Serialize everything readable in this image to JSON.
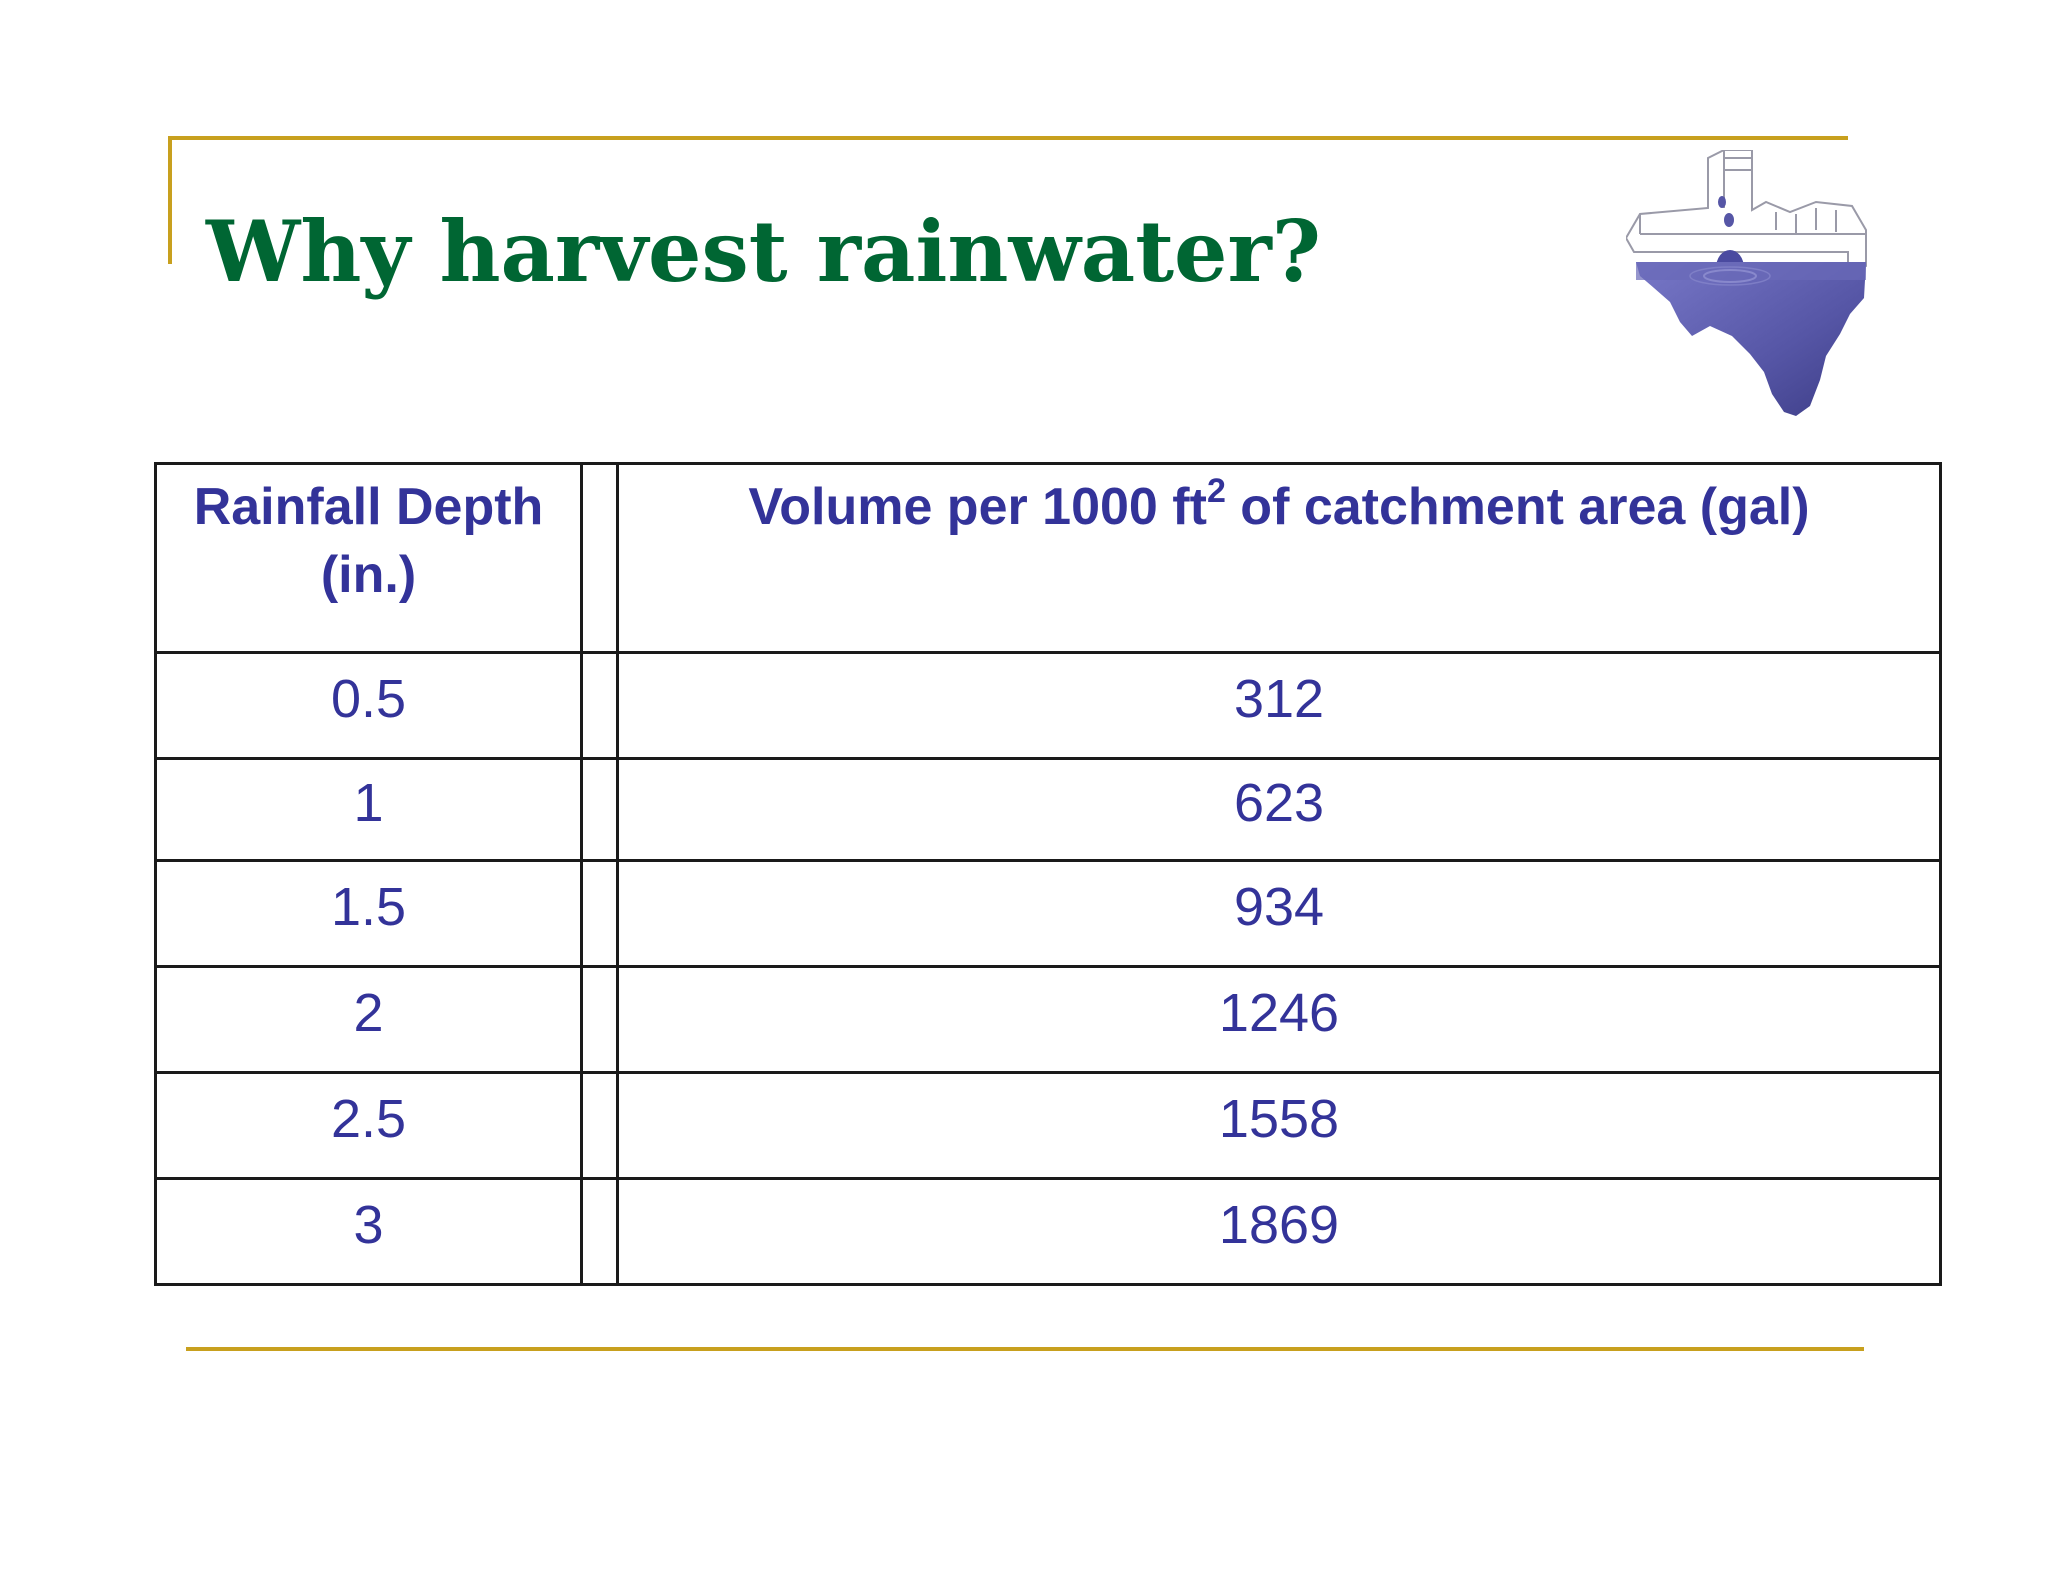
{
  "slide": {
    "title": "Why harvest rainwater?"
  },
  "table": {
    "header": {
      "col1": "Rainfall Depth (in.)",
      "col2_before_sup": "Volume per 1000 ft",
      "col2_sup": "2",
      "col2_after_sup": " of catchment area (gal)"
    },
    "rows": [
      {
        "depth": "0.5",
        "volume": "312"
      },
      {
        "depth": "1",
        "volume": "623"
      },
      {
        "depth": "1.5",
        "volume": "934"
      },
      {
        "depth": "2",
        "volume": "1246"
      },
      {
        "depth": "2.5",
        "volume": "1558"
      },
      {
        "depth": "3",
        "volume": "1869"
      }
    ]
  },
  "colors": {
    "title": "#006633",
    "table_text": "#333399",
    "accent_rule": "#c8a01e",
    "logo_water": "#5656a6"
  },
  "logo": {
    "icon": "texas-rainwater-logo-icon"
  }
}
